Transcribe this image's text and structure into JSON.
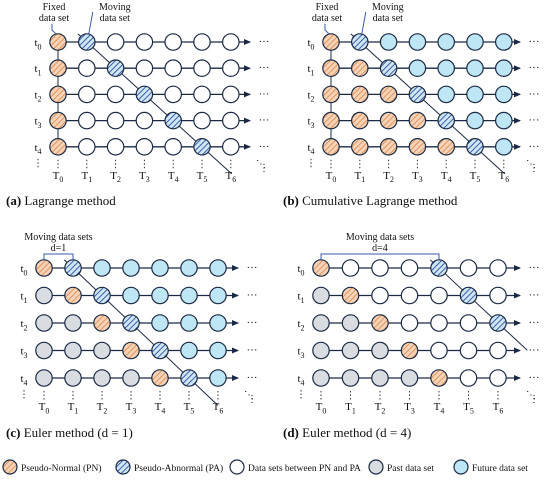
{
  "colors": {
    "pn_fill": "#f6d3b6",
    "pn_hatch": "#d9864c",
    "pa_fill": "#cfe6f3",
    "pa_hatch": "#2d4fa0",
    "between_fill": "#ffffff",
    "past_fill": "#d9dde2",
    "future_fill": "#bfe6f5",
    "stroke": "#1b2a44"
  },
  "panels": [
    {
      "id": "a",
      "caption_letter": "(a)",
      "caption_text": "Lagrange method",
      "annot_fixed": "Fixed\ndata set",
      "annot_moving": "Moving\ndata set",
      "bracket_label": "",
      "rows": [
        "t0",
        "t1",
        "t2",
        "t3",
        "t4"
      ],
      "cols": [
        "T0",
        "T1",
        "T2",
        "T3",
        "T4",
        "T5",
        "T6"
      ],
      "grid": [
        [
          "PN",
          "PA",
          "B",
          "B",
          "B",
          "B",
          "B"
        ],
        [
          "PN",
          "B",
          "PA",
          "B",
          "B",
          "B",
          "B"
        ],
        [
          "PN",
          "B",
          "B",
          "PA",
          "B",
          "B",
          "B"
        ],
        [
          "PN",
          "B",
          "B",
          "B",
          "PA",
          "B",
          "B"
        ],
        [
          "PN",
          "B",
          "B",
          "B",
          "B",
          "PA",
          "B"
        ]
      ]
    },
    {
      "id": "b",
      "caption_letter": "(b)",
      "caption_text": "Cumulative Lagrange method",
      "annot_fixed": "Fixed\ndata set",
      "annot_moving": "Moving\ndata set",
      "bracket_label": "",
      "rows": [
        "t0",
        "t1",
        "t2",
        "t3",
        "t4"
      ],
      "cols": [
        "T0",
        "T1",
        "T2",
        "T3",
        "T4",
        "T5",
        "T6"
      ],
      "grid": [
        [
          "PN",
          "PA",
          "F",
          "F",
          "F",
          "F",
          "F"
        ],
        [
          "PN",
          "PN",
          "PA",
          "F",
          "F",
          "F",
          "F"
        ],
        [
          "PN",
          "PN",
          "PN",
          "PA",
          "F",
          "F",
          "F"
        ],
        [
          "PN",
          "PN",
          "PN",
          "PN",
          "PA",
          "F",
          "F"
        ],
        [
          "PN",
          "PN",
          "PN",
          "PN",
          "PN",
          "PA",
          "F"
        ]
      ]
    },
    {
      "id": "c",
      "caption_letter": "(c)",
      "caption_text": "Euler method (d = 1)",
      "annot_fixed": "",
      "annot_moving": "Moving data sets",
      "bracket_label": "d=1",
      "rows": [
        "t0",
        "t1",
        "t2",
        "t3",
        "t4"
      ],
      "cols": [
        "T0",
        "T1",
        "T2",
        "T3",
        "T4",
        "T5",
        "T6"
      ],
      "grid": [
        [
          "PN",
          "PA",
          "F",
          "F",
          "F",
          "F",
          "F"
        ],
        [
          "P",
          "PN",
          "PA",
          "F",
          "F",
          "F",
          "F"
        ],
        [
          "P",
          "P",
          "PN",
          "PA",
          "F",
          "F",
          "F"
        ],
        [
          "P",
          "P",
          "P",
          "PN",
          "PA",
          "F",
          "F"
        ],
        [
          "P",
          "P",
          "P",
          "P",
          "PN",
          "PA",
          "F"
        ]
      ]
    },
    {
      "id": "d",
      "caption_letter": "(d)",
      "caption_text": "Euler method (d = 4)",
      "annot_fixed": "",
      "annot_moving": "Moving data sets",
      "bracket_label": "d=4",
      "rows": [
        "t0",
        "t1",
        "t2",
        "t3",
        "t4"
      ],
      "cols": [
        "T0",
        "T1",
        "T2",
        "T3",
        "T4",
        "T5",
        "T6"
      ],
      "grid": [
        [
          "PN",
          "B",
          "B",
          "B",
          "PA",
          "B",
          "B"
        ],
        [
          "P",
          "PN",
          "B",
          "B",
          "B",
          "PA",
          "B"
        ],
        [
          "P",
          "P",
          "PN",
          "B",
          "B",
          "B",
          "PA"
        ],
        [
          "P",
          "P",
          "P",
          "PN",
          "B",
          "B",
          "B"
        ],
        [
          "P",
          "P",
          "P",
          "P",
          "PN",
          "B",
          "B"
        ]
      ]
    }
  ],
  "legend": [
    {
      "type": "PN",
      "label": "Pseudo-Normal (PN)"
    },
    {
      "type": "PA",
      "label": "Pseudo-Abnormal (PA)"
    },
    {
      "type": "B",
      "label": "Data sets between PN and PA"
    },
    {
      "type": "P",
      "label": "Past data set"
    },
    {
      "type": "F",
      "label": "Future data set"
    }
  ]
}
